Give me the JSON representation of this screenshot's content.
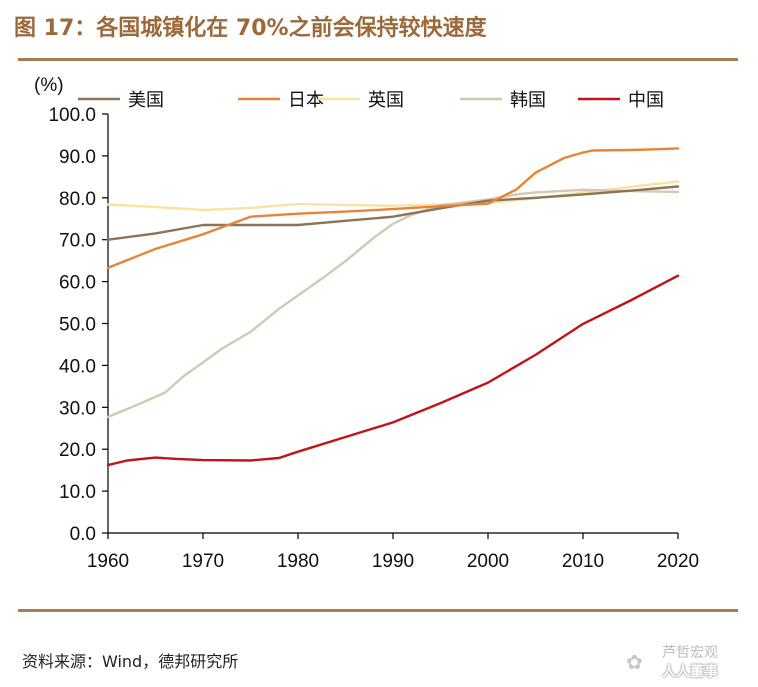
{
  "header": {
    "title": "图 17：各国城镇化在 70%之前会保持较快速度"
  },
  "footer": {
    "source": "资料来源：Wind，德邦研究所",
    "watermark_line1": "芦哲宏观",
    "watermark_line2": "人人董事"
  },
  "chart_data": {
    "type": "line",
    "title": "各国城镇化在 70%之前会保持较快速度",
    "ylabel": "(%)",
    "xlabel": "",
    "xlim": [
      1960,
      2020
    ],
    "ylim": [
      0,
      100
    ],
    "x_ticks": [
      "1960",
      "1970",
      "1980",
      "1990",
      "2000",
      "2010",
      "2020"
    ],
    "y_ticks": [
      "0.0",
      "10.0",
      "20.0",
      "30.0",
      "40.0",
      "50.0",
      "60.0",
      "70.0",
      "80.0",
      "90.0",
      "100.0"
    ],
    "legend_position": "top",
    "series": [
      {
        "name": "美国",
        "color": "#8c7458",
        "x": [
          1960,
          1965,
          1970,
          1975,
          1980,
          1985,
          1990,
          1995,
          2000,
          2005,
          2010,
          2015,
          2020
        ],
        "y": [
          70,
          71.5,
          73.5,
          73.5,
          73.5,
          74.5,
          75.5,
          77.5,
          79.3,
          80,
          80.8,
          81.7,
          82.7
        ]
      },
      {
        "name": "日本",
        "color": "#e8843a",
        "x": [
          1960,
          1965,
          1970,
          1975,
          1980,
          1985,
          1990,
          1995,
          2000,
          2003,
          2005,
          2008,
          2010,
          2011,
          2015,
          2018,
          2020
        ],
        "y": [
          63.3,
          67.8,
          71.3,
          75.5,
          76.2,
          76.7,
          77.3,
          78,
          78.6,
          82,
          86,
          89.5,
          90.8,
          91.3,
          91.4,
          91.6,
          91.8
        ]
      },
      {
        "name": "英国",
        "color": "#f7e4a4",
        "x": [
          1960,
          1965,
          1970,
          1975,
          1980,
          1985,
          1990,
          1995,
          2000,
          2005,
          2010,
          2015,
          2020
        ],
        "y": [
          78.4,
          77.8,
          77.1,
          77.6,
          78.5,
          78.3,
          78.1,
          78.4,
          78.7,
          79.9,
          81.3,
          82.6,
          83.9
        ]
      },
      {
        "name": "韩国",
        "color": "#d3c8b2",
        "x": [
          1960,
          1963,
          1966,
          1968,
          1970,
          1972,
          1975,
          1978,
          1980,
          1983,
          1985,
          1988,
          1990,
          1992,
          1995,
          2000,
          2003,
          2005,
          2010,
          2015,
          2020
        ],
        "y": [
          27.7,
          30.5,
          33.5,
          37.5,
          40.7,
          44,
          48,
          53.5,
          56.7,
          61.5,
          64.9,
          70.5,
          73.8,
          76,
          78.2,
          79.6,
          80.8,
          81.3,
          81.9,
          81.6,
          81.4
        ]
      },
      {
        "name": "中国",
        "color": "#c0141c",
        "x": [
          1960,
          1962,
          1965,
          1967,
          1970,
          1975,
          1978,
          1980,
          1985,
          1990,
          1995,
          2000,
          2005,
          2010,
          2015,
          2020
        ],
        "y": [
          16.2,
          17.3,
          18,
          17.7,
          17.4,
          17.3,
          17.9,
          19.4,
          22.9,
          26.4,
          31,
          35.9,
          42.5,
          49.9,
          55.5,
          61.4
        ]
      }
    ]
  }
}
